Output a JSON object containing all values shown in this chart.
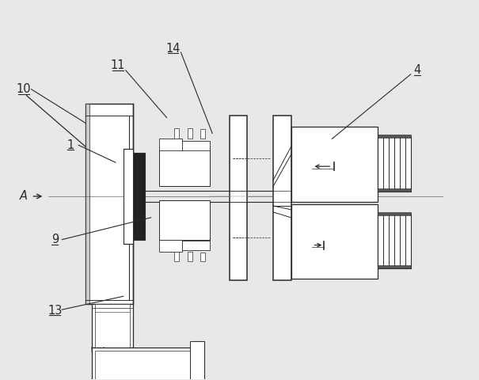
{
  "bg_color": "#e8e8e8",
  "line_color": "#2a2a2a",
  "white": "#ffffff",
  "dark_fill": "#404040",
  "hatch_fill": "#888888"
}
